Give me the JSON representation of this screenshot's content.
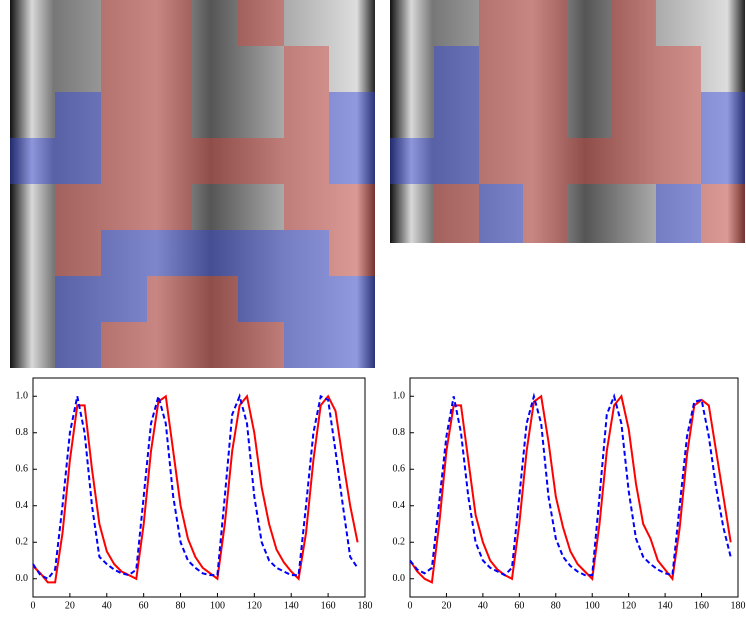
{
  "chart_data": [
    {
      "type": "line",
      "x": [
        0,
        4,
        8,
        12,
        16,
        20,
        24,
        28,
        32,
        36,
        40,
        44,
        48,
        52,
        56,
        60,
        64,
        68,
        72,
        76,
        80,
        84,
        88,
        92,
        96,
        100,
        104,
        108,
        112,
        116,
        120,
        124,
        128,
        132,
        136,
        140,
        144,
        148,
        152,
        156,
        160,
        164,
        168,
        172,
        176
      ],
      "series": [
        {
          "color": "#ff0000",
          "style": "solid",
          "values": [
            0.07,
            0.03,
            -0.02,
            -0.02,
            0.25,
            0.65,
            0.95,
            0.95,
            0.6,
            0.3,
            0.15,
            0.08,
            0.04,
            0.02,
            0.0,
            0.3,
            0.7,
            0.97,
            1.0,
            0.7,
            0.4,
            0.22,
            0.12,
            0.06,
            0.03,
            0.0,
            0.3,
            0.7,
            0.95,
            1.0,
            0.8,
            0.5,
            0.3,
            0.16,
            0.09,
            0.04,
            0.0,
            0.25,
            0.65,
            0.95,
            1.0,
            0.92,
            0.65,
            0.4,
            0.2
          ]
        },
        {
          "color": "#0000ff",
          "style": "dashed",
          "values": [
            0.08,
            0.02,
            0.0,
            0.05,
            0.4,
            0.8,
            1.0,
            0.8,
            0.4,
            0.12,
            0.08,
            0.05,
            0.03,
            0.02,
            0.05,
            0.45,
            0.85,
            1.0,
            0.85,
            0.45,
            0.2,
            0.1,
            0.06,
            0.03,
            0.02,
            0.02,
            0.45,
            0.9,
            1.0,
            0.85,
            0.45,
            0.2,
            0.1,
            0.06,
            0.04,
            0.02,
            0.02,
            0.4,
            0.8,
            1.0,
            0.98,
            0.7,
            0.4,
            0.12,
            0.06
          ]
        }
      ],
      "xlim": [
        0,
        180
      ],
      "xticks": [
        0,
        20,
        40,
        60,
        80,
        100,
        120,
        140,
        160,
        180
      ],
      "ylim": [
        -0.1,
        1.1
      ],
      "yticks": [
        {
          "value": 0,
          "label": "0.0"
        },
        {
          "value": 0.2,
          "label": "0.2"
        },
        {
          "value": 0.4,
          "label": "0.4"
        },
        {
          "value": 0.6,
          "label": "0.6"
        },
        {
          "value": 0.8,
          "label": "0.8"
        },
        {
          "value": 1,
          "label": "1.0"
        }
      ]
    },
    {
      "type": "line",
      "x": [
        0,
        4,
        8,
        12,
        16,
        20,
        24,
        28,
        32,
        36,
        40,
        44,
        48,
        52,
        56,
        60,
        64,
        68,
        72,
        76,
        80,
        84,
        88,
        92,
        96,
        100,
        104,
        108,
        112,
        116,
        120,
        124,
        128,
        132,
        136,
        140,
        144,
        148,
        152,
        156,
        160,
        164,
        168,
        172,
        176
      ],
      "series": [
        {
          "color": "#ff0000",
          "style": "solid",
          "values": [
            0.1,
            0.04,
            0.0,
            -0.02,
            0.3,
            0.7,
            0.95,
            0.95,
            0.65,
            0.35,
            0.2,
            0.1,
            0.05,
            0.02,
            0.0,
            0.3,
            0.7,
            0.97,
            1.0,
            0.75,
            0.45,
            0.28,
            0.15,
            0.08,
            0.04,
            0.0,
            0.3,
            0.7,
            0.95,
            1.0,
            0.82,
            0.52,
            0.3,
            0.22,
            0.1,
            0.05,
            0.0,
            0.28,
            0.68,
            0.95,
            0.98,
            0.95,
            0.7,
            0.45,
            0.2
          ]
        },
        {
          "color": "#0000ff",
          "style": "dashed",
          "values": [
            0.1,
            0.05,
            0.03,
            0.06,
            0.42,
            0.78,
            1.0,
            0.8,
            0.45,
            0.2,
            0.1,
            0.06,
            0.04,
            0.02,
            0.06,
            0.45,
            0.85,
            1.0,
            0.85,
            0.45,
            0.22,
            0.12,
            0.07,
            0.04,
            0.02,
            0.02,
            0.45,
            0.9,
            1.0,
            0.85,
            0.48,
            0.22,
            0.12,
            0.08,
            0.05,
            0.03,
            0.02,
            0.4,
            0.78,
            0.97,
            0.98,
            0.78,
            0.5,
            0.28,
            0.12
          ]
        }
      ],
      "xlim": [
        0,
        180
      ],
      "xticks": [
        0,
        20,
        40,
        60,
        80,
        100,
        120,
        140,
        160,
        180
      ],
      "ylim": [
        -0.1,
        1.1
      ],
      "yticks": [
        {
          "value": 0,
          "label": "0.0"
        },
        {
          "value": 0.2,
          "label": "0.2"
        },
        {
          "value": 0.4,
          "label": "0.4"
        },
        {
          "value": 0.6,
          "label": "0.6"
        },
        {
          "value": 0.8,
          "label": "0.8"
        },
        {
          "value": 1,
          "label": "1.0"
        }
      ]
    }
  ]
}
